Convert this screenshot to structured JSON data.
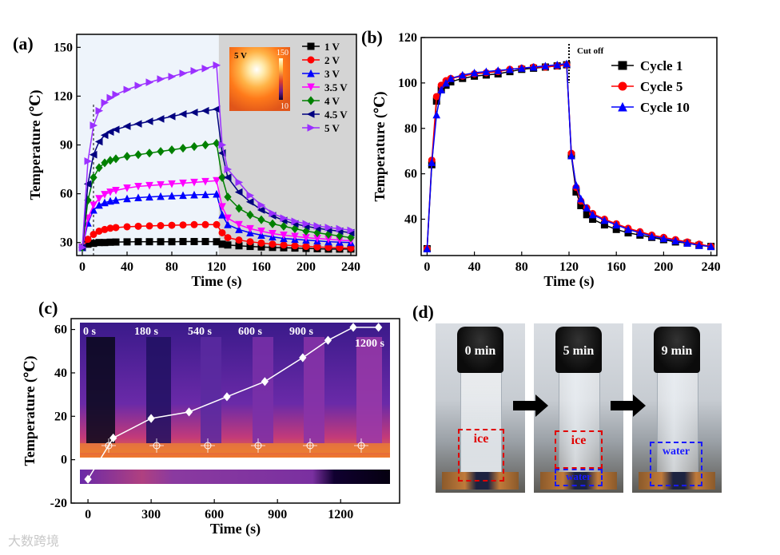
{
  "chart_data": [
    {
      "panel": "(a)",
      "type": "line",
      "xlabel": "Time (s)",
      "ylabel": "Temperature (℃)",
      "xlim": [
        -5,
        245
      ],
      "ylim": [
        22,
        158
      ],
      "xticks": [
        0,
        40,
        80,
        120,
        160,
        200,
        240
      ],
      "yticks": [
        30,
        60,
        90,
        120,
        150
      ],
      "legend_position": "top-right",
      "inset": {
        "label": "5 V",
        "max_label": "150",
        "min_label": "10"
      },
      "x": [
        0,
        5,
        10,
        15,
        20,
        25,
        30,
        40,
        50,
        60,
        70,
        80,
        90,
        100,
        110,
        120,
        125,
        130,
        140,
        150,
        160,
        170,
        180,
        190,
        200,
        210,
        220,
        230,
        240
      ],
      "series": [
        {
          "name": "1 V",
          "color": "#000000",
          "marker": "square",
          "values": [
            27,
            29,
            29.5,
            30,
            30,
            30.2,
            30.3,
            30.4,
            30.5,
            30.5,
            30.5,
            30.5,
            30.6,
            30.6,
            30.6,
            30.5,
            29,
            28.5,
            28,
            27.6,
            27.3,
            27,
            26.8,
            26.6,
            26.4,
            26.2,
            26,
            26,
            26
          ]
        },
        {
          "name": "2 V",
          "color": "#ff0000",
          "marker": "circle",
          "values": [
            27,
            32,
            35,
            37,
            38,
            38.8,
            39.2,
            39.7,
            40,
            40.2,
            40.4,
            40.6,
            40.8,
            41,
            41,
            41,
            36,
            33,
            31.5,
            30.5,
            29.7,
            29,
            28.5,
            28,
            27.6,
            27.3,
            27,
            26.8,
            26.5
          ]
        },
        {
          "name": "3 V",
          "color": "#0000ff",
          "marker": "triangle-up",
          "values": [
            27,
            42,
            50,
            53,
            54.5,
            55.5,
            56,
            57,
            57.6,
            58,
            58.4,
            58.7,
            59,
            59.3,
            59.5,
            59.8,
            47,
            41,
            38,
            36,
            34.5,
            33.5,
            32.5,
            32,
            31.5,
            31,
            30.5,
            30.2,
            30
          ]
        },
        {
          "name": "3.5 V",
          "color": "#ff00ff",
          "marker": "triangle-down",
          "values": [
            27,
            45,
            53,
            57,
            59.5,
            61,
            62,
            63.5,
            64.5,
            65,
            65.5,
            66,
            66.5,
            67,
            67.5,
            68,
            52,
            45,
            41,
            38.5,
            37,
            35.5,
            34.5,
            33.8,
            33,
            32.5,
            32,
            31.5,
            31
          ]
        },
        {
          "name": "4 V",
          "color": "#008000",
          "marker": "diamond",
          "values": [
            27,
            56,
            70,
            76,
            79,
            80.5,
            81.5,
            83,
            84,
            85,
            86,
            87,
            88,
            89,
            90,
            91,
            70,
            58,
            51,
            47,
            44,
            41.5,
            40,
            38.5,
            37,
            36,
            35,
            34,
            33
          ]
        },
        {
          "name": "4.5 V",
          "color": "#000080",
          "marker": "triangle-left",
          "values": [
            27,
            66,
            84,
            92,
            96,
            98,
            99.5,
            101.5,
            103,
            104.5,
            106,
            107.5,
            109,
            110,
            111,
            112,
            85,
            70,
            61,
            55,
            50,
            46.5,
            43.5,
            41.5,
            40,
            38.8,
            37.8,
            37,
            36
          ]
        },
        {
          "name": "5 V",
          "color": "#9b30ff",
          "marker": "triangle-right",
          "values": [
            27,
            80,
            102,
            111,
            116,
            119,
            121,
            124,
            126.5,
            128.5,
            130.5,
            132,
            134,
            135.5,
            137,
            139,
            90,
            75,
            67,
            59,
            53,
            48,
            45,
            43,
            41.5,
            40.2,
            39.2,
            38.5,
            37.5
          ]
        }
      ]
    },
    {
      "panel": "(b)",
      "type": "line",
      "xlabel": "Time (s)",
      "ylabel": "Temperature (℃)",
      "xlim": [
        -5,
        245
      ],
      "ylim": [
        24,
        120
      ],
      "xticks": [
        0,
        40,
        80,
        120,
        160,
        200,
        240
      ],
      "yticks": [
        40,
        60,
        80,
        100,
        120
      ],
      "legend_position": "top-right",
      "annotation": "Cut off",
      "x": [
        0,
        4,
        8,
        12,
        16,
        20,
        30,
        40,
        50,
        60,
        70,
        80,
        90,
        100,
        110,
        118,
        122,
        126,
        130,
        135,
        140,
        150,
        160,
        170,
        180,
        190,
        200,
        210,
        220,
        230,
        240
      ],
      "series": [
        {
          "name": "Cycle 1",
          "color": "#000000",
          "marker": "square",
          "values": [
            27,
            64,
            92,
            97,
            99,
            100.5,
            102,
            103,
            103.5,
            104,
            105,
            106,
            106.5,
            107,
            107.5,
            108,
            68,
            52,
            46,
            42,
            40,
            37.5,
            35.5,
            34,
            33,
            32,
            31,
            30,
            29.5,
            28.5,
            28
          ]
        },
        {
          "name": "Cycle 5",
          "color": "#ff0000",
          "marker": "circle",
          "values": [
            27,
            66,
            94,
            99,
            101,
            102,
            103,
            104,
            104.5,
            105,
            106,
            106.5,
            107,
            107,
            107.5,
            108,
            69,
            54,
            48,
            45,
            42.5,
            40,
            38,
            36,
            34.5,
            33,
            32,
            31,
            30,
            29,
            28
          ]
        },
        {
          "name": "Cycle 10",
          "color": "#0000ff",
          "marker": "triangle-up",
          "values": [
            27,
            65,
            86,
            97,
            100,
            102,
            103.5,
            104.5,
            105,
            105.5,
            106,
            106.5,
            107,
            107.5,
            108,
            108.5,
            68,
            55,
            49,
            45,
            42,
            39.5,
            37.5,
            35.5,
            34,
            32.5,
            31.5,
            30.5,
            29.5,
            28.5,
            28
          ]
        }
      ]
    },
    {
      "panel": "(c)",
      "type": "line",
      "xlabel": "Time (s)",
      "ylabel": "Temperature (℃)",
      "xlim": [
        -80,
        1480
      ],
      "ylim": [
        -20,
        65
      ],
      "xticks": [
        0,
        300,
        600,
        900,
        1200
      ],
      "yticks": [
        -20,
        0,
        20,
        40,
        60
      ],
      "frame_labels": [
        "0 s",
        "180 s",
        "540 s",
        "600 s",
        "900 s",
        "1200 s"
      ],
      "x": [
        0,
        120,
        300,
        480,
        660,
        840,
        1020,
        1140,
        1260,
        1380
      ],
      "series": [
        {
          "name": "",
          "color": "#ffffff",
          "marker": "diamond",
          "values": [
            -9,
            10,
            19,
            22,
            29,
            36,
            47,
            55,
            61,
            61
          ]
        }
      ]
    }
  ],
  "photos": {
    "panel": "(d)",
    "frames": [
      {
        "time": "0 min",
        "box": "ice"
      },
      {
        "time": "5 min",
        "box": "ice",
        "box2": "water"
      },
      {
        "time": "9 min",
        "box": "water"
      }
    ]
  },
  "watermark": "大数跨境"
}
